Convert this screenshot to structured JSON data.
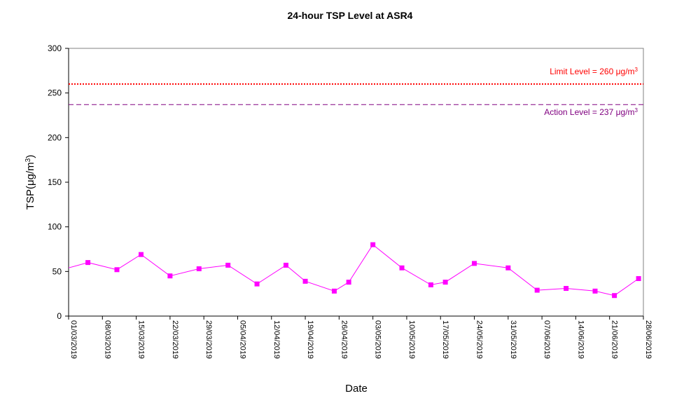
{
  "chart_data": {
    "type": "line",
    "title": "24-hour TSP Level at ASR4",
    "xlabel": "Date",
    "ylabel": {
      "base": "TSP(",
      "mu": "μ",
      "unit": "g/m",
      "sup": "3",
      "close": ")"
    },
    "ylim": [
      0,
      300
    ],
    "yticks": [
      "0",
      "50",
      "100",
      "150",
      "200",
      "250",
      "300"
    ],
    "xlim": [
      "2019-03-01",
      "2019-06-28"
    ],
    "xticks": [
      "01/03/2019",
      "08/03/2019",
      "15/03/2019",
      "22/03/2019",
      "29/03/2019",
      "05/04/2019",
      "12/04/2019",
      "19/04/2019",
      "26/04/2019",
      "03/05/2019",
      "10/05/2019",
      "17/05/2019",
      "24/05/2019",
      "31/05/2019",
      "07/06/2019",
      "14/06/2019",
      "21/06/2019",
      "28/06/2019"
    ],
    "grid": false,
    "series": [
      {
        "color": "#ff00ff",
        "points": [
          {
            "x": "2019-03-01",
            "y": 54,
            "marker": false
          },
          {
            "x": "2019-03-05",
            "y": 60
          },
          {
            "x": "2019-03-11",
            "y": 52
          },
          {
            "x": "2019-03-16",
            "y": 69
          },
          {
            "x": "2019-03-22",
            "y": 45
          },
          {
            "x": "2019-03-28",
            "y": 53
          },
          {
            "x": "2019-04-03",
            "y": 57
          },
          {
            "x": "2019-04-09",
            "y": 36
          },
          {
            "x": "2019-04-15",
            "y": 57
          },
          {
            "x": "2019-04-19",
            "y": 39
          },
          {
            "x": "2019-04-25",
            "y": 28
          },
          {
            "x": "2019-04-28",
            "y": 38
          },
          {
            "x": "2019-05-03",
            "y": 80
          },
          {
            "x": "2019-05-09",
            "y": 54
          },
          {
            "x": "2019-05-15",
            "y": 35
          },
          {
            "x": "2019-05-18",
            "y": 38
          },
          {
            "x": "2019-05-24",
            "y": 59
          },
          {
            "x": "2019-05-31",
            "y": 54
          },
          {
            "x": "2019-06-06",
            "y": 29
          },
          {
            "x": "2019-06-12",
            "y": 31
          },
          {
            "x": "2019-06-18",
            "y": 28
          },
          {
            "x": "2019-06-22",
            "y": 23
          },
          {
            "x": "2019-06-27",
            "y": 42
          }
        ]
      }
    ],
    "reference_lines": [
      {
        "name": "limit",
        "y": 260,
        "color": "#ff0000",
        "style": "dotted",
        "label": {
          "text": "Limit Level  = 260 ",
          "mu": "μ",
          "unit": "g/m",
          "sup": "3"
        }
      },
      {
        "name": "action",
        "y": 237,
        "color": "#800080",
        "style": "dashed",
        "label": {
          "text": "Action Level  = 237 ",
          "mu": "μ",
          "unit": "g/m",
          "sup": "3"
        }
      }
    ]
  }
}
